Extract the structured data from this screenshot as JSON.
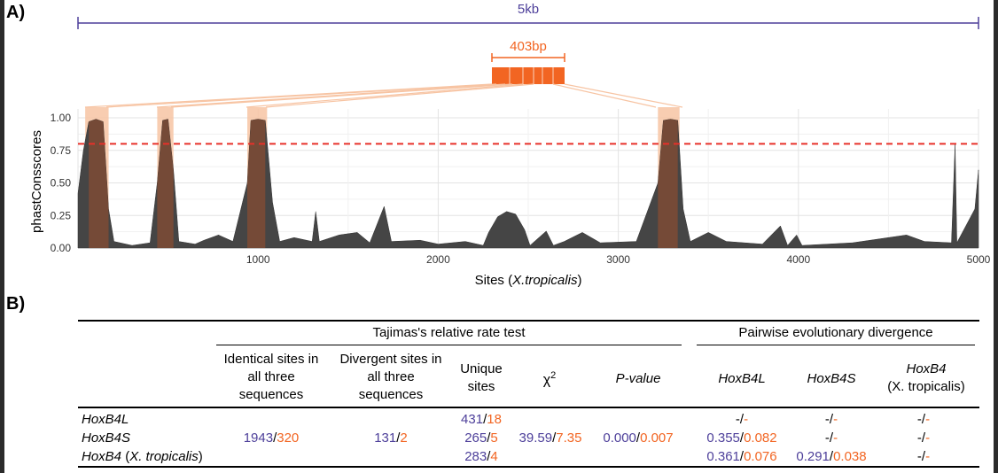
{
  "panel_a_label": "A)",
  "panel_b_label": "B)",
  "colors": {
    "blue": "#4d3f9a",
    "orange": "#f26522",
    "threshold": "#e8312a",
    "conserved": "#7a4a35",
    "highlight": "#f7c4a3"
  },
  "scale": {
    "label_5kb": "5kb",
    "label_403bp": "403bp"
  },
  "chart_data": {
    "type": "area",
    "title": "",
    "xlabel": "Sites (X.tropicalis)",
    "xlabel_plain": "Sites (",
    "xlabel_italic": "X.tropicalis",
    "xlabel_end": ")",
    "ylabel": "phastConsscores",
    "xlim": [
      0,
      5000
    ],
    "ylim": [
      0,
      1.0
    ],
    "x_ticks": [
      1000,
      2000,
      3000,
      4000,
      5000
    ],
    "x_tick_labels": [
      "1000",
      "2000",
      "3000",
      "4000",
      "5000"
    ],
    "y_ticks": [
      0.0,
      0.25,
      0.5,
      0.75,
      1.0
    ],
    "y_tick_labels": [
      "0.00",
      "0.25",
      "0.50",
      "0.75",
      "1.00"
    ],
    "threshold": 0.8,
    "conserved_regions": [
      [
        40,
        170
      ],
      [
        440,
        530
      ],
      [
        940,
        1050
      ],
      [
        3220,
        3340
      ]
    ],
    "profile": [
      [
        0,
        0.42
      ],
      [
        30,
        0.75
      ],
      [
        60,
        0.97
      ],
      [
        100,
        0.99
      ],
      [
        140,
        0.97
      ],
      [
        170,
        0.3
      ],
      [
        200,
        0.05
      ],
      [
        300,
        0.02
      ],
      [
        400,
        0.04
      ],
      [
        440,
        0.5
      ],
      [
        470,
        0.98
      ],
      [
        500,
        0.99
      ],
      [
        530,
        0.6
      ],
      [
        560,
        0.05
      ],
      [
        650,
        0.03
      ],
      [
        700,
        0.06
      ],
      [
        780,
        0.1
      ],
      [
        860,
        0.05
      ],
      [
        940,
        0.5
      ],
      [
        960,
        0.98
      ],
      [
        1000,
        0.99
      ],
      [
        1040,
        0.98
      ],
      [
        1080,
        0.35
      ],
      [
        1120,
        0.05
      ],
      [
        1200,
        0.08
      ],
      [
        1300,
        0.05
      ],
      [
        1320,
        0.28
      ],
      [
        1340,
        0.05
      ],
      [
        1450,
        0.1
      ],
      [
        1550,
        0.12
      ],
      [
        1620,
        0.04
      ],
      [
        1700,
        0.32
      ],
      [
        1740,
        0.05
      ],
      [
        1900,
        0.06
      ],
      [
        2000,
        0.03
      ],
      [
        2150,
        0.05
      ],
      [
        2250,
        0.02
      ],
      [
        2280,
        0.12
      ],
      [
        2330,
        0.24
      ],
      [
        2380,
        0.28
      ],
      [
        2430,
        0.26
      ],
      [
        2480,
        0.14
      ],
      [
        2510,
        0.02
      ],
      [
        2600,
        0.13
      ],
      [
        2640,
        0.02
      ],
      [
        2700,
        0.05
      ],
      [
        2800,
        0.12
      ],
      [
        2900,
        0.04
      ],
      [
        3100,
        0.05
      ],
      [
        3220,
        0.5
      ],
      [
        3250,
        0.98
      ],
      [
        3290,
        0.99
      ],
      [
        3330,
        0.98
      ],
      [
        3360,
        0.3
      ],
      [
        3400,
        0.05
      ],
      [
        3500,
        0.12
      ],
      [
        3600,
        0.05
      ],
      [
        3800,
        0.03
      ],
      [
        3900,
        0.17
      ],
      [
        3940,
        0.02
      ],
      [
        3990,
        0.1
      ],
      [
        4020,
        0.02
      ],
      [
        4300,
        0.04
      ],
      [
        4600,
        0.1
      ],
      [
        4700,
        0.05
      ],
      [
        4850,
        0.04
      ],
      [
        4870,
        0.8
      ],
      [
        4880,
        0.04
      ],
      [
        4980,
        0.3
      ],
      [
        5000,
        0.6
      ]
    ]
  },
  "table": {
    "group_tajima": "Tajimas's relative rate test",
    "group_pairwise": "Pairwise evolutionary divergence",
    "col_identical": [
      "Identical sites in",
      "all three",
      "sequences"
    ],
    "col_divergent": [
      "Divergent sites in",
      "all three",
      "sequences"
    ],
    "col_unique": [
      "Unique",
      "sites"
    ],
    "col_chi_base": "χ",
    "col_chi_sup": "2",
    "col_pvalue": "P-value",
    "col_hoxb4l": "HoxB4L",
    "col_hoxb4s": "HoxB4S",
    "col_hoxb4_name": "HoxB4",
    "col_hoxb4_species": "(X. tropicalis)",
    "row1_name": "HoxB4L",
    "row2_name": "HoxB4S",
    "row3_name_gene": "HoxB4",
    "row3_name_open": " (",
    "row3_name_species": "X. tropicalis",
    "row3_name_close": ")",
    "slash": "/",
    "identical": {
      "a": "1943",
      "b": "320"
    },
    "divergent": {
      "a": "131",
      "b": "2"
    },
    "unique": [
      {
        "a": "431",
        "b": "18"
      },
      {
        "a": "265",
        "b": "5"
      },
      {
        "a": "283",
        "b": "4"
      }
    ],
    "chi": {
      "a": "39.59",
      "b": "7.35"
    },
    "pvalue": {
      "a": "0.000",
      "b": "0.007"
    },
    "dash_a": "-",
    "dash_b": "-",
    "div_r2_l": {
      "a": "0.355",
      "b": "0.082"
    },
    "div_r3_l": {
      "a": "0.361",
      "b": "0.076"
    },
    "div_r3_s": {
      "a": "0.291",
      "b": "0.038"
    }
  }
}
